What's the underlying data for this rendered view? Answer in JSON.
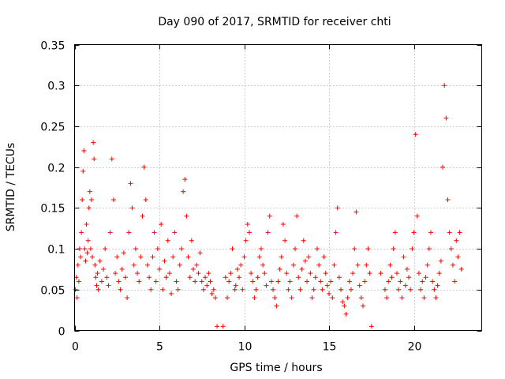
{
  "chart_data": {
    "type": "scatter",
    "title": "Day 090 of 2017, SRMTID for receiver chti",
    "xlabel": "GPS time / hours",
    "ylabel": "SRMTID / TECUs",
    "xlim": [
      0,
      24
    ],
    "ylim": [
      0,
      0.35
    ],
    "xticks": [
      0,
      5,
      10,
      15,
      20
    ],
    "yticks": [
      0,
      0.05,
      0.1,
      0.15,
      0.2,
      0.25,
      0.3,
      0.35
    ],
    "xtick_labels": [
      "0",
      "5",
      "10",
      "15",
      "20"
    ],
    "ytick_labels": [
      "0",
      "0.05",
      "0.1",
      "0.15",
      "0.2",
      "0.25",
      "0.3",
      "0.35"
    ],
    "grid": true,
    "marker": "plus",
    "color": "#ff0000",
    "series": [
      {
        "x": [
          0.05,
          0.1,
          0.15,
          0.2,
          0.25,
          0.3,
          0.35,
          0.4,
          0.45,
          0.5,
          0.55,
          0.6,
          0.65,
          0.7,
          0.75,
          0.8,
          0.85,
          0.9,
          0.95,
          1.0,
          1.05,
          1.1,
          1.15,
          1.2,
          1.25,
          1.3,
          1.35,
          1.4,
          1.5,
          1.6,
          1.7,
          1.8,
          1.9,
          2.0,
          2.1,
          2.2,
          2.3,
          2.4,
          2.5,
          2.6,
          2.7,
          2.8,
          2.9,
          3.0,
          3.1,
          3.2,
          3.3,
          3.4,
          3.5,
          3.6,
          3.7,
          3.8,
          3.9,
          4.0,
          4.1,
          4.2,
          4.3,
          4.4,
          4.5,
          4.6,
          4.7,
          4.8,
          4.9,
          5.0,
          5.1,
          5.2,
          5.3,
          5.4,
          5.5,
          5.6,
          5.7,
          5.8,
          5.9,
          6.0,
          6.1,
          6.2,
          6.3,
          6.4,
          6.5,
          6.6,
          6.7,
          6.8,
          6.9,
          7.0,
          7.1,
          7.2,
          7.3,
          7.4,
          7.5,
          7.6,
          7.7,
          7.8,
          7.9,
          8.0,
          8.1,
          8.2,
          8.3,
          8.4,
          8.75,
          9.45,
          8.9,
          9.0,
          9.1,
          9.2,
          9.3,
          9.5,
          9.6,
          9.7,
          9.8,
          9.9,
          10.0,
          10.1,
          10.2,
          10.3,
          10.4,
          10.5,
          10.6,
          10.7,
          10.8,
          10.9,
          11.0,
          11.1,
          11.2,
          11.3,
          11.4,
          11.5,
          11.6,
          11.7,
          11.8,
          11.9,
          12.0,
          12.1,
          12.2,
          12.3,
          12.4,
          12.5,
          12.6,
          12.7,
          12.8,
          12.9,
          13.0,
          13.1,
          13.2,
          13.3,
          13.4,
          13.5,
          13.6,
          13.7,
          13.8,
          13.9,
          14.0,
          14.1,
          14.2,
          14.3,
          14.4,
          14.5,
          14.6,
          14.7,
          14.8,
          14.9,
          15.0,
          15.1,
          15.2,
          15.3,
          15.4,
          15.5,
          15.6,
          15.7,
          15.8,
          15.9,
          16.0,
          16.1,
          16.2,
          16.3,
          16.4,
          16.5,
          16.6,
          16.7,
          16.8,
          16.9,
          17.0,
          17.1,
          17.2,
          17.3,
          17.4,
          17.5,
          18.05,
          18.3,
          18.4,
          18.5,
          18.6,
          18.7,
          18.8,
          18.9,
          19.0,
          19.1,
          19.2,
          19.3,
          19.4,
          19.5,
          19.6,
          19.7,
          19.8,
          19.9,
          20.0,
          20.1,
          20.2,
          20.3,
          20.4,
          20.5,
          20.6,
          20.7,
          20.8,
          20.9,
          21.0,
          21.1,
          21.2,
          21.3,
          21.4,
          21.5,
          21.6,
          21.7,
          21.8,
          21.9,
          22.0,
          22.1,
          22.2,
          22.3,
          22.4,
          22.5,
          22.6,
          22.7,
          22.8
        ],
        "y": [
          0.05,
          0.065,
          0.04,
          0.08,
          0.06,
          0.1,
          0.09,
          0.12,
          0.16,
          0.195,
          0.22,
          0.1,
          0.085,
          0.13,
          0.095,
          0.11,
          0.15,
          0.17,
          0.1,
          0.16,
          0.09,
          0.23,
          0.21,
          0.08,
          0.065,
          0.055,
          0.07,
          0.05,
          0.085,
          0.06,
          0.075,
          0.1,
          0.065,
          0.055,
          0.12,
          0.21,
          0.16,
          0.07,
          0.09,
          0.06,
          0.05,
          0.075,
          0.095,
          0.065,
          0.04,
          0.12,
          0.18,
          0.15,
          0.08,
          0.1,
          0.07,
          0.06,
          0.09,
          0.14,
          0.2,
          0.16,
          0.08,
          0.065,
          0.05,
          0.09,
          0.12,
          0.06,
          0.1,
          0.075,
          0.13,
          0.05,
          0.085,
          0.065,
          0.11,
          0.07,
          0.045,
          0.09,
          0.12,
          0.06,
          0.05,
          0.08,
          0.1,
          0.17,
          0.185,
          0.14,
          0.09,
          0.065,
          0.11,
          0.075,
          0.06,
          0.08,
          0.07,
          0.095,
          0.06,
          0.05,
          0.065,
          0.055,
          0.07,
          0.06,
          0.045,
          0.05,
          0.04,
          0.005,
          0.005,
          0.05,
          0.065,
          0.04,
          0.06,
          0.07,
          0.1,
          0.055,
          0.075,
          0.065,
          0.08,
          0.05,
          0.09,
          0.11,
          0.13,
          0.12,
          0.07,
          0.06,
          0.04,
          0.05,
          0.065,
          0.09,
          0.1,
          0.08,
          0.07,
          0.055,
          0.12,
          0.14,
          0.06,
          0.05,
          0.04,
          0.03,
          0.06,
          0.075,
          0.09,
          0.13,
          0.11,
          0.07,
          0.05,
          0.06,
          0.04,
          0.08,
          0.1,
          0.14,
          0.065,
          0.05,
          0.075,
          0.11,
          0.085,
          0.06,
          0.09,
          0.07,
          0.04,
          0.05,
          0.065,
          0.1,
          0.08,
          0.06,
          0.05,
          0.09,
          0.07,
          0.055,
          0.045,
          0.06,
          0.04,
          0.08,
          0.12,
          0.15,
          0.065,
          0.05,
          0.035,
          0.03,
          0.02,
          0.04,
          0.06,
          0.05,
          0.07,
          0.1,
          0.145,
          0.08,
          0.055,
          0.04,
          0.03,
          0.06,
          0.08,
          0.1,
          0.07,
          0.005,
          0.07,
          0.05,
          0.04,
          0.06,
          0.08,
          0.065,
          0.1,
          0.12,
          0.07,
          0.05,
          0.06,
          0.04,
          0.09,
          0.055,
          0.075,
          0.065,
          0.05,
          0.1,
          0.12,
          0.24,
          0.14,
          0.07,
          0.05,
          0.06,
          0.04,
          0.065,
          0.08,
          0.1,
          0.12,
          0.06,
          0.05,
          0.04,
          0.055,
          0.07,
          0.085,
          0.2,
          0.3,
          0.26,
          0.16,
          0.12,
          0.1,
          0.08,
          0.06,
          0.11,
          0.09,
          0.12,
          0.075
        ]
      }
    ]
  }
}
